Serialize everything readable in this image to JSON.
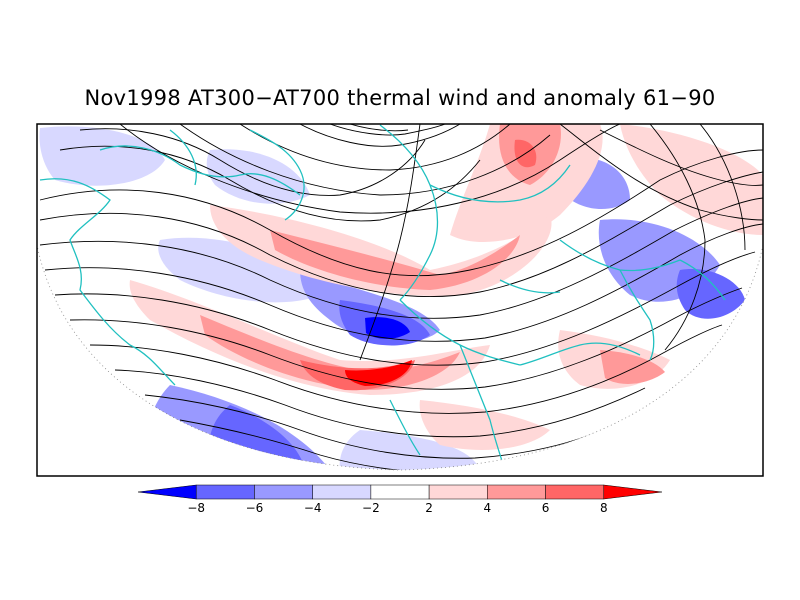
{
  "title": "Nov1998 AT300−AT700 thermal wind and anomaly 61−90",
  "colorbar": {
    "ticks": [
      "−8",
      "−6",
      "−4",
      "−2",
      "2",
      "4",
      "6",
      "8"
    ],
    "bins": [
      {
        "color": "#0000ff"
      },
      {
        "color": "#6666ff"
      },
      {
        "color": "#9999ff"
      },
      {
        "color": "#d8d8ff"
      },
      {
        "color": "#ffffff"
      },
      {
        "color": "#ffd8d8"
      },
      {
        "color": "#ff9999"
      },
      {
        "color": "#ff6666"
      },
      {
        "color": "#ff0000"
      }
    ]
  },
  "colors": {
    "coast": "#20c0c0",
    "streamline": "#000000",
    "grid": "#888888",
    "frame": "#000000"
  }
}
